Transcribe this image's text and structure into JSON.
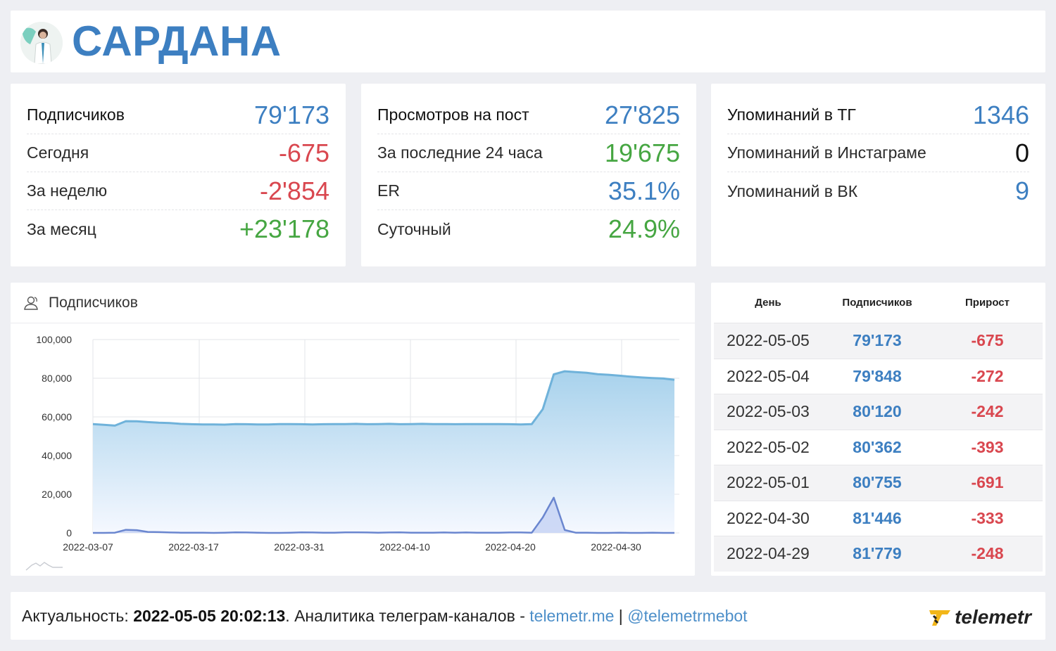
{
  "header": {
    "title": "САРДАНА"
  },
  "stats": [
    {
      "rows": [
        {
          "label": "Подписчиков",
          "value": "79'173",
          "color": "blue"
        },
        {
          "label": "Сегодня",
          "value": "-675",
          "color": "red"
        },
        {
          "label": "За неделю",
          "value": "-2'854",
          "color": "red"
        },
        {
          "label": "За месяц",
          "value": "+23'178",
          "color": "green"
        }
      ]
    },
    {
      "rows": [
        {
          "label": "Просмотров на пост",
          "value": "27'825",
          "color": "blue"
        },
        {
          "label": "За последние 24 часа",
          "value": "19'675",
          "color": "green"
        },
        {
          "label": "ER",
          "value": "35.1%",
          "color": "blue"
        },
        {
          "label": "Суточный",
          "value": "24.9%",
          "color": "green"
        }
      ]
    },
    {
      "rows": [
        {
          "label": "Упоминаний в ТГ",
          "value": "1346",
          "color": "blue"
        },
        {
          "label": "Упоминаний в Инстаграме",
          "value": "0",
          "color": "black"
        },
        {
          "label": "Упоминаний в ВК",
          "value": "9",
          "color": "blue"
        }
      ]
    }
  ],
  "chart_panel": {
    "title": "Подписчиков"
  },
  "chart_data": {
    "type": "area",
    "ylim": [
      0,
      100000
    ],
    "y_ticks": [
      "100,000",
      "80,000",
      "60,000",
      "40,000",
      "20,000",
      "0"
    ],
    "x_ticks": [
      "2022-03-07",
      "2022-03-17",
      "2022-03-31",
      "2022-04-10",
      "2022-04-20",
      "2022-04-30"
    ],
    "grid": true,
    "series": [
      {
        "values": [
          56300,
          55900,
          55500,
          57800,
          57700,
          57300,
          57000,
          56800,
          56400,
          56200,
          56100,
          56100,
          56000,
          56300,
          56200,
          56100,
          56100,
          56300,
          56300,
          56200,
          56100,
          56200,
          56300,
          56300,
          56400,
          56200,
          56300,
          56400,
          56200,
          56300,
          56400,
          56300,
          56300,
          56200,
          56300,
          56300,
          56300,
          56300,
          56200,
          56100,
          56300,
          64000,
          82000,
          83600,
          83200,
          82800,
          82100,
          81800,
          81300,
          80800,
          80400,
          80100,
          79848,
          79173
        ]
      },
      {
        "values": [
          0,
          0,
          100,
          1600,
          1400,
          500,
          400,
          200,
          100,
          100,
          100,
          0,
          100,
          300,
          200,
          100,
          0,
          0,
          100,
          300,
          200,
          100,
          100,
          300,
          300,
          200,
          100,
          200,
          300,
          100,
          100,
          100,
          200,
          100,
          200,
          100,
          100,
          100,
          200,
          200,
          100,
          8000,
          18200,
          1500,
          100,
          100,
          0,
          0,
          100,
          0,
          0,
          100,
          0,
          0
        ]
      }
    ]
  },
  "table": {
    "headers": [
      "День",
      "Подписчиков",
      "Прирост"
    ],
    "rows": [
      [
        "2022-05-05",
        "79'173",
        "-675"
      ],
      [
        "2022-05-04",
        "79'848",
        "-272"
      ],
      [
        "2022-05-03",
        "80'120",
        "-242"
      ],
      [
        "2022-05-02",
        "80'362",
        "-393"
      ],
      [
        "2022-05-01",
        "80'755",
        "-691"
      ],
      [
        "2022-04-30",
        "81'446",
        "-333"
      ],
      [
        "2022-04-29",
        "81'779",
        "-248"
      ]
    ]
  },
  "footer": {
    "prefix": "Актуальность: ",
    "date": "2022-05-05 20:02:13",
    "mid": ". Аналитика телеграм-каналов - ",
    "link1": "telemetr.me",
    "sep": " | ",
    "link2": "@telemetrmebot",
    "logo_text": "telemetr"
  }
}
